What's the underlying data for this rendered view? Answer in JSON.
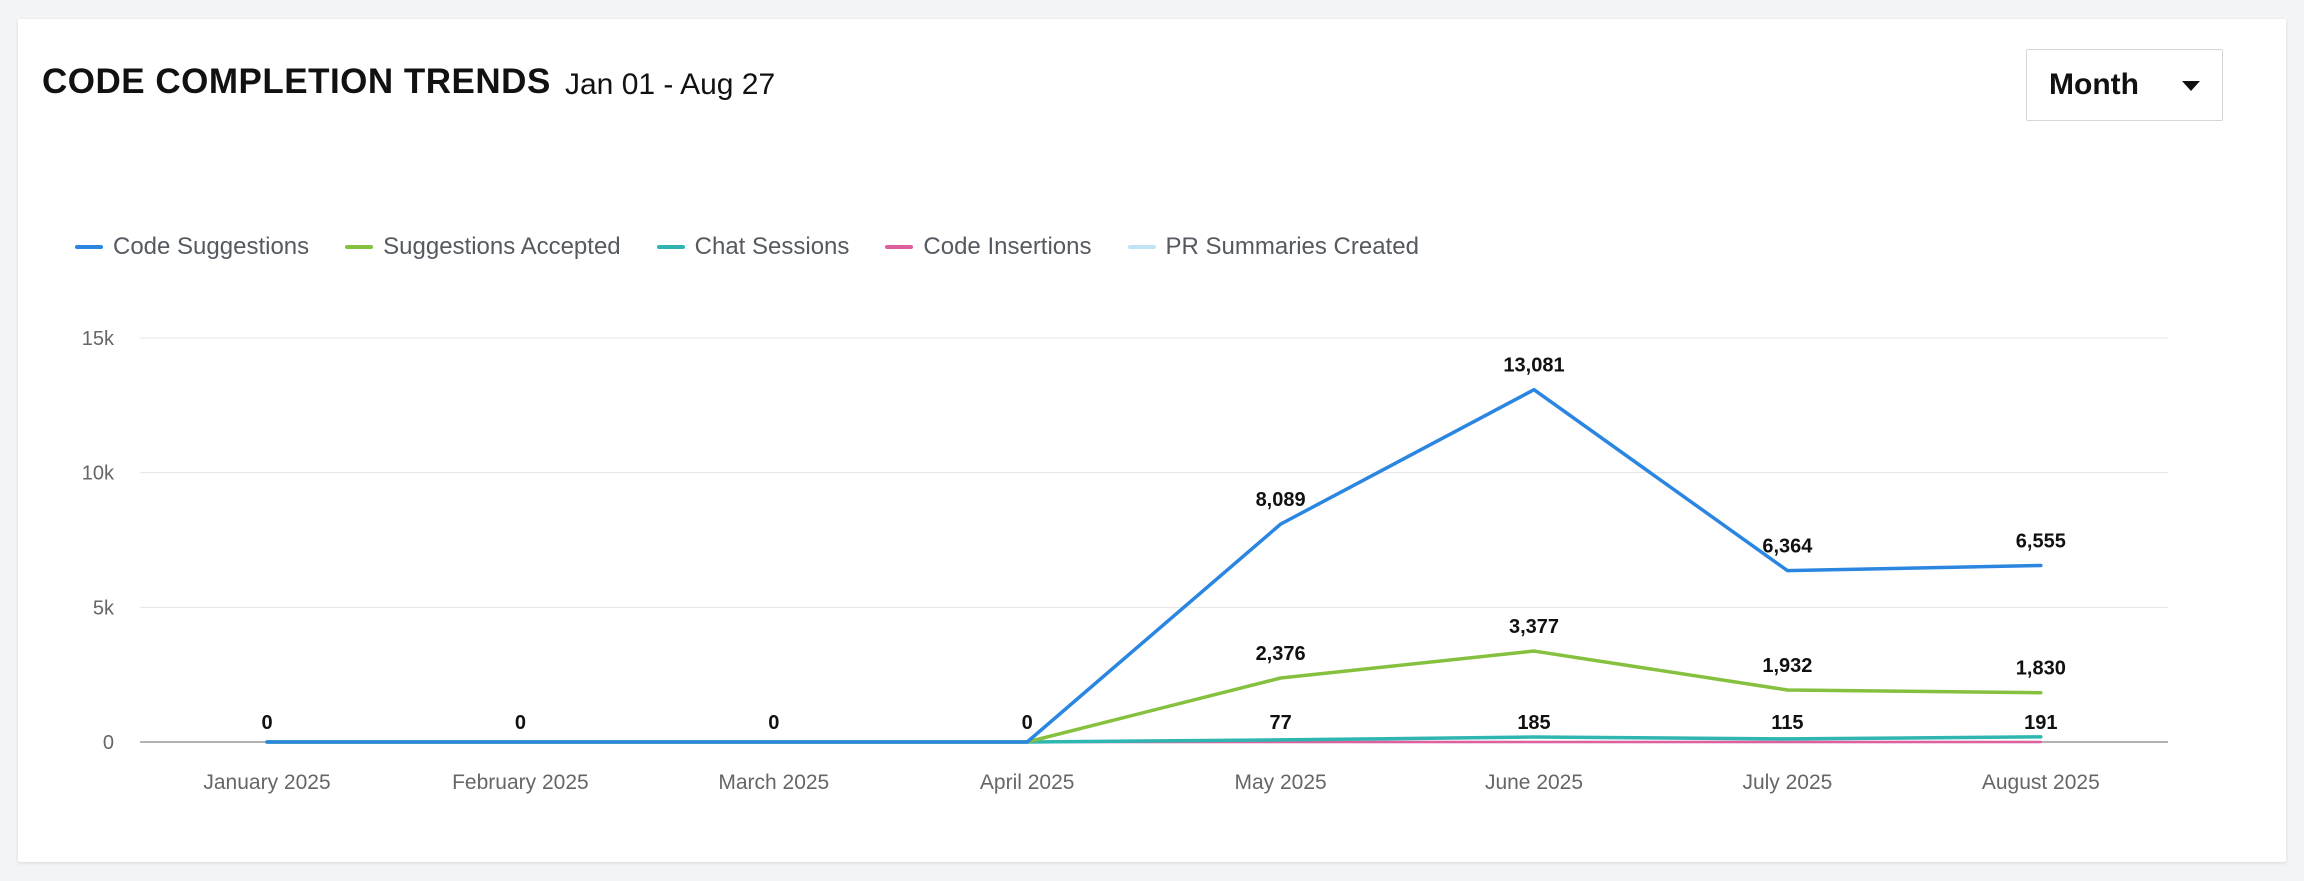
{
  "header": {
    "title": "CODE COMPLETION TRENDS",
    "date_range": "Jan 01 - Aug 27"
  },
  "period_select": {
    "value": "Month"
  },
  "chart_data": {
    "type": "line",
    "categories": [
      "January 2025",
      "February 2025",
      "March 2025",
      "April 2025",
      "May 2025",
      "June 2025",
      "July 2025",
      "August 2025"
    ],
    "series": [
      {
        "name": "Code Suggestions",
        "color": "#2a86e0",
        "values": [
          0,
          0,
          0,
          0,
          8089,
          13081,
          6364,
          6555
        ]
      },
      {
        "name": "Suggestions Accepted",
        "color": "#86c03f",
        "values": [
          0,
          0,
          0,
          0,
          2376,
          3377,
          1932,
          1830
        ]
      },
      {
        "name": "Chat Sessions",
        "color": "#2fb6b1",
        "values": [
          0,
          0,
          0,
          0,
          77,
          185,
          115,
          191
        ]
      },
      {
        "name": "Code Insertions",
        "color": "#e0609e",
        "values": [
          0,
          0,
          0,
          0,
          0,
          0,
          0,
          0
        ]
      },
      {
        "name": "PR Summaries Created",
        "color": "#bfe3f2",
        "values": [
          0,
          0,
          0,
          0,
          0,
          0,
          0,
          0
        ]
      }
    ],
    "data_labels": {
      "per_category": [
        "0",
        "0",
        "0",
        "0",
        "77",
        "185",
        "115",
        "191"
      ],
      "code_suggestions": [
        "8,089",
        "13,081",
        "6,364",
        "6,555"
      ],
      "suggestions_accepted": [
        "2,376",
        "3,377",
        "1,932",
        "1,830"
      ]
    },
    "y_ticks": [
      {
        "value": 0,
        "label": "0"
      },
      {
        "value": 5000,
        "label": "5k"
      },
      {
        "value": 10000,
        "label": "10k"
      },
      {
        "value": 15000,
        "label": "15k"
      }
    ],
    "ylim": [
      0,
      15000
    ],
    "grid": true,
    "legend_position": "top-left",
    "title": "",
    "xlabel": "",
    "ylabel": ""
  }
}
